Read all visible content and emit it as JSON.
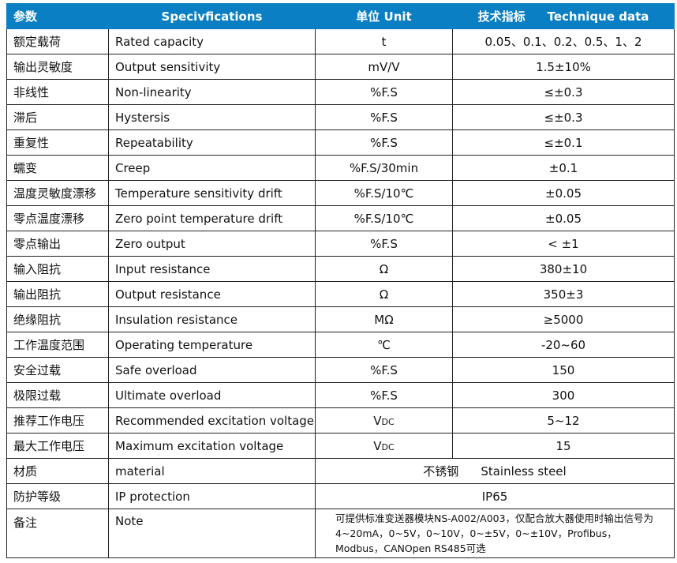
{
  "header": {
    "param": "参数",
    "spec": "Specivfications",
    "unit": "单位   Unit",
    "data_cn": "技术指标",
    "data_en": "Technique data"
  },
  "rows": [
    {
      "cn": "额定载荷",
      "en": "Rated capacity",
      "unit": "t",
      "value": "0.05、0.1、0.2、0.5、1、2"
    },
    {
      "cn": "输出灵敏度",
      "en": "Output sensitivity",
      "unit": "mV/V",
      "value": "1.5±10%"
    },
    {
      "cn": "非线性",
      "en": "Non-linearity",
      "unit": "%F.S",
      "value": "≤±0.3"
    },
    {
      "cn": "滞后",
      "en": "Hystersis",
      "unit": "%F.S",
      "value": "≤±0.3"
    },
    {
      "cn": "重复性",
      "en": "Repeatability",
      "unit": "%F.S",
      "value": "≤±0.1"
    },
    {
      "cn": "蠕变",
      "en": "Creep",
      "unit": "%F.S/30min",
      "value": "±0.1"
    },
    {
      "cn": "温度灵敏度漂移",
      "en": "Temperature sensitivity drift",
      "unit": "%F.S/10℃",
      "value": "±0.05"
    },
    {
      "cn": "零点温度漂移",
      "en": "Zero point temperature drift",
      "unit": "%F.S/10℃",
      "value": "±0.05"
    },
    {
      "cn": "零点输出",
      "en": "Zero output",
      "unit": "%F.S",
      "value": "< ±1"
    },
    {
      "cn": "输入阻抗",
      "en": "Input resistance",
      "unit": "Ω",
      "value": "380±10"
    },
    {
      "cn": "输出阻抗",
      "en": "Output resistance",
      "unit": "Ω",
      "value": "350±3"
    },
    {
      "cn": "绝缘阻抗",
      "en": "Insulation resistance",
      "unit": "MΩ",
      "value": "≥5000"
    },
    {
      "cn": "工作温度范围",
      "en": "Operating temperature",
      "unit": "℃",
      "value": "-20~60"
    },
    {
      "cn": "安全过载",
      "en": "Safe overload",
      "unit": "%F.S",
      "value": "150"
    },
    {
      "cn": "极限过载",
      "en": "Ultimate overload",
      "unit": "%F.S",
      "value": "300"
    },
    {
      "cn": "推荐工作电压",
      "en": "Recommended excitation voltage",
      "unit": "VDC",
      "value": "5~12"
    },
    {
      "cn": "最大工作电压",
      "en": "Maximum excitation voltage",
      "unit": "VDC",
      "value": "15"
    }
  ],
  "material": {
    "cn": "材质",
    "en": "material",
    "value_cn": "不锈钢",
    "value_en": "Stainless steel"
  },
  "ip": {
    "cn": "防护等级",
    "en": "IP protection",
    "value": "IP65"
  },
  "note": {
    "cn": "备注",
    "en": "Note",
    "value": "可提供标准变送器模块NS-A002/A003，仅配合放大器使用时输出信号为4~20mA，0~5V，0~10V，0~±5V，0~±10V，Profibus，Modbus，CANOpen  RS485可选"
  },
  "colors": {
    "header_bg": "#0a7fc4"
  }
}
